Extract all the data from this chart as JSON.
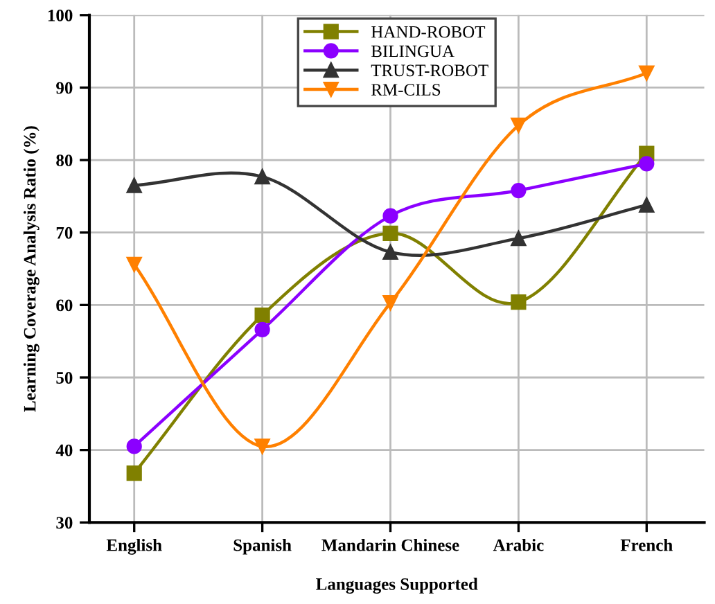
{
  "chart_data": {
    "type": "line",
    "xlabel": "Languages Supported",
    "ylabel": "Learning Coverage Analysis Ratio (%)",
    "categories": [
      "English",
      "Spanish",
      "Mandarin Chinese",
      "Arabic",
      "French"
    ],
    "series": [
      {
        "name": "HAND-ROBOT",
        "color": "#808000",
        "marker": "square",
        "values": [
          36.8,
          58.6,
          69.9,
          60.4,
          80.9
        ]
      },
      {
        "name": "BILINGUA",
        "color": "#8b00ff",
        "marker": "circle",
        "values": [
          40.5,
          56.6,
          72.3,
          75.8,
          79.5
        ]
      },
      {
        "name": "TRUST-ROBOT",
        "color": "#333333",
        "marker": "triangle",
        "values": [
          76.5,
          77.7,
          67.3,
          69.2,
          73.8
        ]
      },
      {
        "name": "RM-CILS",
        "color": "#ff8000",
        "marker": "triangle_down",
        "values": [
          65.6,
          40.5,
          60.3,
          84.8,
          92.0
        ]
      }
    ],
    "ylim": [
      30,
      100
    ],
    "yticks": [
      30,
      40,
      50,
      60,
      70,
      80,
      90,
      100
    ],
    "grid": true,
    "legend": "top",
    "line_style": "solid"
  }
}
